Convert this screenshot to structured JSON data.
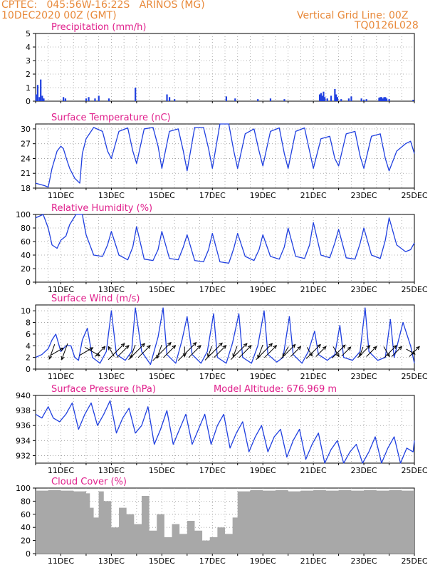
{
  "header": {
    "line1_left": "CPTEC:   045:56W-16:22S   ARINOS (MG)",
    "line2_left": "10DEC2020 00Z (GMT)",
    "line1_right": "Vertical Grid Line: 00Z",
    "line2_right": "TQ0126L028"
  },
  "colors": {
    "header": "#e8893a",
    "panel_title": "#e0208c",
    "series": "#2040e0",
    "wind_arrow": "#000000",
    "cloud": "#a8a8a8",
    "grid": "#9a9a9a"
  },
  "x_axis_labels": [
    "11DEC",
    "13DEC",
    "15DEC",
    "17DEC",
    "19DEC",
    "21DEC",
    "23DEC",
    "25DEC"
  ],
  "chart_data": [
    {
      "type": "bar",
      "title": "Precipitation (mm/h)",
      "ylim": [
        0,
        5
      ],
      "yticks": [
        "0",
        "1",
        "2",
        "3",
        "4",
        "5"
      ],
      "x_unit": "days since 10DEC 00Z",
      "x": [
        0.02,
        0.08,
        0.15,
        0.2,
        0.26,
        0.32,
        1.1,
        1.18,
        2.0,
        2.1,
        2.35,
        2.5,
        2.9,
        3.95,
        5.2,
        5.3,
        5.5,
        7.55,
        7.9,
        8.8,
        9.3,
        9.85,
        11.25,
        11.3,
        11.35,
        11.4,
        11.45,
        11.55,
        11.7,
        11.85,
        11.9,
        11.95,
        12.1,
        12.4,
        12.5,
        12.9,
        13.0,
        13.1,
        13.6,
        13.65,
        13.7,
        13.75,
        13.8,
        13.85,
        13.9,
        14.0,
        14.95
      ],
      "values": [
        0.5,
        1.2,
        0.3,
        1.6,
        0.4,
        0.2,
        0.3,
        0.2,
        0.2,
        0.3,
        0.2,
        0.4,
        0.2,
        1.0,
        0.5,
        0.3,
        0.15,
        0.35,
        0.2,
        0.15,
        0.2,
        0.15,
        0.5,
        0.6,
        0.4,
        0.7,
        0.3,
        0.2,
        0.4,
        0.9,
        0.5,
        0.3,
        0.15,
        0.2,
        0.35,
        0.2,
        0.1,
        0.15,
        0.25,
        0.3,
        0.3,
        0.2,
        0.3,
        0.3,
        0.2,
        0.15,
        0.1
      ]
    },
    {
      "type": "line",
      "title": "Surface Temperature (nC)",
      "ylim": [
        18,
        31
      ],
      "yticks": [
        "18",
        "21",
        "24",
        "27",
        "30"
      ],
      "series": [
        {
          "x": [
            0,
            0.35,
            0.5,
            0.65,
            0.85,
            1.0,
            1.1,
            1.25,
            1.35,
            1.55,
            1.75,
            1.85,
            2.0,
            2.3,
            2.65,
            2.85,
            3.0,
            3.3,
            3.65,
            3.85,
            4.0,
            4.3,
            4.65,
            4.85,
            5.0,
            5.3,
            5.65,
            5.85,
            6.0,
            6.3,
            6.65,
            6.85,
            7.0,
            7.3,
            7.65,
            7.85,
            8.0,
            8.3,
            8.65,
            8.85,
            9.0,
            9.3,
            9.65,
            9.85,
            10.0,
            10.3,
            10.65,
            10.85,
            11.0,
            11.3,
            11.65,
            11.85,
            12.0,
            12.3,
            12.65,
            12.85,
            13.0,
            13.3,
            13.65,
            13.85,
            14.0,
            14.3,
            14.65,
            14.85,
            15.0
          ],
          "values": [
            19.0,
            18.5,
            18.2,
            22.0,
            25.5,
            26.5,
            26.0,
            23.5,
            22.0,
            20.0,
            19.0,
            25.0,
            28.0,
            30.3,
            29.5,
            25.5,
            24.0,
            29.5,
            30.2,
            25.5,
            23.0,
            30.0,
            30.3,
            26.5,
            22.0,
            29.5,
            30.0,
            25.5,
            21.5,
            30.3,
            30.3,
            26.0,
            22.0,
            31.2,
            31.5,
            25.5,
            22.0,
            29.0,
            30.0,
            25.5,
            22.5,
            29.5,
            30.2,
            25.0,
            22.0,
            29.5,
            30.2,
            25.5,
            22.0,
            28.0,
            28.5,
            24.0,
            22.5,
            29.0,
            29.5,
            24.5,
            22.0,
            28.5,
            29.0,
            24.0,
            21.5,
            25.5,
            27.0,
            27.5,
            25.0
          ]
        }
      ]
    },
    {
      "type": "line",
      "title": "Relative Humidity (%)",
      "ylim": [
        0,
        100
      ],
      "yticks": [
        "0",
        "20",
        "40",
        "60",
        "80",
        "100"
      ],
      "series": [
        {
          "x": [
            0,
            0.3,
            0.5,
            0.65,
            0.85,
            1.0,
            1.2,
            1.35,
            1.6,
            1.85,
            2.0,
            2.3,
            2.65,
            2.85,
            3.0,
            3.3,
            3.65,
            3.85,
            4.0,
            4.3,
            4.65,
            4.85,
            5.0,
            5.3,
            5.65,
            5.85,
            6.0,
            6.3,
            6.65,
            6.85,
            7.0,
            7.3,
            7.65,
            7.85,
            8.0,
            8.3,
            8.65,
            8.85,
            9.0,
            9.3,
            9.65,
            9.85,
            10.0,
            10.3,
            10.65,
            10.85,
            11.0,
            11.3,
            11.65,
            11.85,
            12.0,
            12.3,
            12.65,
            12.85,
            13.0,
            13.3,
            13.65,
            13.85,
            14.0,
            14.3,
            14.65,
            14.85,
            15.0
          ],
          "values": [
            95,
            100,
            80,
            55,
            50,
            62,
            68,
            85,
            100,
            100,
            70,
            40,
            38,
            55,
            75,
            40,
            33,
            52,
            82,
            34,
            32,
            48,
            75,
            35,
            33,
            52,
            70,
            32,
            30,
            48,
            72,
            30,
            28,
            50,
            72,
            38,
            32,
            48,
            70,
            38,
            34,
            52,
            80,
            38,
            35,
            55,
            88,
            40,
            36,
            58,
            78,
            36,
            34,
            57,
            80,
            40,
            35,
            62,
            95,
            55,
            45,
            48,
            58
          ]
        }
      ]
    },
    {
      "type": "line",
      "title": "Surface Wind (m/s)",
      "ylim": [
        0,
        11
      ],
      "yticks": [
        "0",
        "2",
        "4",
        "6",
        "8",
        "10"
      ],
      "series": [
        {
          "x": [
            0,
            0.25,
            0.5,
            0.65,
            0.8,
            1.0,
            1.2,
            1.4,
            1.55,
            1.7,
            1.85,
            2.05,
            2.25,
            2.55,
            2.8,
            3.0,
            3.2,
            3.55,
            3.8,
            3.95,
            4.2,
            4.55,
            4.85,
            5.05,
            5.2,
            5.55,
            5.8,
            6.0,
            6.2,
            6.55,
            6.8,
            7.05,
            7.2,
            7.55,
            7.8,
            8.05,
            8.2,
            8.55,
            8.8,
            9.05,
            9.2,
            9.55,
            9.8,
            10.05,
            10.2,
            10.55,
            10.8,
            11.05,
            11.2,
            11.55,
            11.85,
            12.05,
            12.2,
            12.55,
            12.85,
            13.05,
            13.2,
            13.55,
            13.85,
            14.05,
            14.2,
            14.55,
            14.85,
            15.0
          ],
          "values": [
            2.0,
            2.5,
            3.5,
            5.0,
            6.0,
            3.0,
            4.0,
            4.0,
            2.0,
            1.5,
            5.0,
            7.0,
            2.0,
            1.0,
            3.0,
            10.0,
            2.5,
            1.5,
            3.0,
            10.5,
            3.0,
            0.8,
            5.5,
            10.5,
            2.5,
            1.0,
            5.0,
            9.0,
            2.5,
            1.0,
            3.0,
            9.5,
            2.0,
            1.0,
            4.5,
            9.5,
            2.0,
            1.0,
            4.0,
            10.0,
            2.5,
            1.2,
            2.0,
            9.0,
            2.5,
            1.0,
            3.0,
            6.5,
            2.5,
            1.5,
            2.5,
            7.5,
            2.0,
            1.5,
            3.0,
            10.5,
            3.0,
            1.5,
            2.0,
            8.5,
            2.0,
            8.0,
            4.0,
            1.0
          ]
        }
      ],
      "wind_vectors": {
        "x": [
          0.65,
          0.85,
          1.15,
          2.0,
          2.25,
          2.55,
          3.0,
          3.2,
          3.45,
          3.85,
          4.0,
          4.3,
          4.9,
          5.0,
          5.3,
          5.9,
          6.0,
          6.3,
          6.9,
          7.05,
          7.3,
          7.9,
          8.05,
          8.3,
          8.9,
          9.05,
          9.3,
          9.9,
          10.0,
          10.3,
          10.85,
          11.0,
          11.3,
          11.9,
          12.0,
          12.3,
          12.9,
          13.0,
          13.3,
          13.9,
          14.05,
          14.3,
          14.85,
          15.0
        ],
        "speed": [
          5.5,
          5.0,
          6.0,
          5.5,
          6.0,
          5.0,
          4.0,
          8.0,
          6.0,
          5.0,
          8.0,
          6.0,
          5.0,
          9.0,
          6.0,
          3.5,
          9.0,
          6.0,
          4.0,
          8.5,
          6.0,
          4.0,
          8.0,
          6.0,
          5.0,
          8.0,
          6.0,
          4.0,
          7.0,
          5.0,
          3.5,
          7.0,
          5.0,
          4.0,
          6.5,
          4.5,
          3.5,
          6.0,
          5.0,
          4.0,
          6.0,
          5.0,
          3.5,
          5.0
        ],
        "dir_to_deg": [
          200,
          60,
          200,
          60,
          120,
          45,
          330,
          45,
          45,
          200,
          45,
          45,
          200,
          45,
          45,
          180,
          45,
          45,
          200,
          45,
          45,
          200,
          45,
          45,
          200,
          45,
          45,
          210,
          45,
          45,
          150,
          45,
          45,
          150,
          45,
          45,
          200,
          45,
          45,
          150,
          45,
          45,
          120,
          45
        ]
      }
    },
    {
      "type": "line",
      "title": "Surface Pressure (hPa)",
      "annotation": "Model Altitude: 676.969 m",
      "ylim": [
        931,
        940
      ],
      "yticks": [
        "932",
        "934",
        "936",
        "938",
        "940"
      ],
      "series": [
        {
          "x": [
            0,
            0.25,
            0.5,
            0.7,
            0.95,
            1.2,
            1.45,
            1.7,
            1.95,
            2.2,
            2.45,
            2.7,
            2.95,
            3.2,
            3.45,
            3.7,
            3.95,
            4.2,
            4.45,
            4.7,
            4.95,
            5.2,
            5.45,
            5.7,
            5.95,
            6.2,
            6.45,
            6.7,
            6.95,
            7.2,
            7.45,
            7.7,
            7.95,
            8.2,
            8.45,
            8.7,
            8.95,
            9.2,
            9.45,
            9.7,
            9.95,
            10.2,
            10.45,
            10.7,
            10.95,
            11.2,
            11.45,
            11.7,
            11.95,
            12.2,
            12.45,
            12.7,
            12.95,
            13.2,
            13.45,
            13.7,
            13.95,
            14.2,
            14.45,
            14.7,
            14.95,
            15.0
          ],
          "values": [
            937.5,
            937.0,
            938.5,
            937.0,
            936.5,
            937.5,
            939.0,
            935.5,
            937.5,
            939.0,
            936.0,
            937.5,
            939.3,
            935.0,
            937.0,
            938.3,
            935.0,
            936.0,
            938.5,
            933.5,
            935.5,
            938.0,
            933.5,
            935.5,
            937.5,
            933.5,
            935.5,
            937.5,
            933.5,
            936.0,
            937.5,
            933.0,
            935.0,
            936.5,
            932.5,
            934.5,
            936.0,
            932.5,
            934.5,
            935.5,
            931.8,
            934.0,
            935.5,
            931.5,
            933.5,
            935.0,
            931.0,
            932.8,
            934.0,
            931.0,
            932.5,
            933.5,
            931.0,
            932.5,
            934.5,
            931.0,
            933.0,
            934.5,
            931.0,
            933.0,
            932.5,
            934.0
          ]
        }
      ]
    },
    {
      "type": "bar",
      "title": "Cloud Cover (%)",
      "ylim": [
        0,
        100
      ],
      "yticks": [
        "0",
        "20",
        "40",
        "60",
        "80",
        "100"
      ],
      "x_unit": "days since 10DEC 00Z",
      "x": [
        0,
        0.5,
        1.0,
        1.5,
        2.0,
        2.15,
        2.3,
        2.5,
        2.7,
        3.0,
        3.3,
        3.6,
        3.9,
        4.2,
        4.5,
        4.8,
        5.1,
        5.4,
        5.7,
        6.0,
        6.3,
        6.6,
        6.9,
        7.2,
        7.5,
        7.8,
        8.0,
        8.5,
        9.0,
        9.5,
        10.0,
        10.5,
        11.0,
        11.5,
        12.0,
        12.5,
        13.0,
        13.5,
        14.0,
        14.5,
        15.0
      ],
      "values": [
        96,
        97,
        96,
        95,
        92,
        70,
        55,
        95,
        80,
        40,
        70,
        60,
        45,
        88,
        35,
        60,
        25,
        45,
        30,
        50,
        35,
        20,
        25,
        40,
        30,
        55,
        95,
        97,
        96,
        97,
        95,
        96,
        97,
        96,
        97,
        96,
        97,
        96,
        97,
        96,
        97
      ]
    }
  ]
}
